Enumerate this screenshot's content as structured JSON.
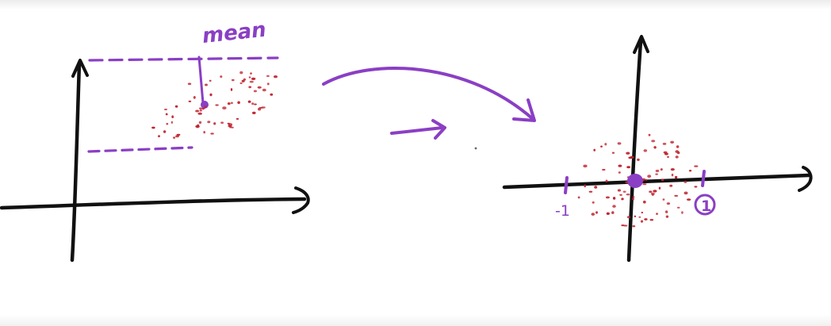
{
  "colors": {
    "ink": "#111111",
    "marker": "#8a3fc4",
    "dots": "#c0222d"
  },
  "left_plot": {
    "mean_label": "mean"
  },
  "right_plot": {
    "minus_one_label": "-1",
    "plus_one_label": "1"
  }
}
